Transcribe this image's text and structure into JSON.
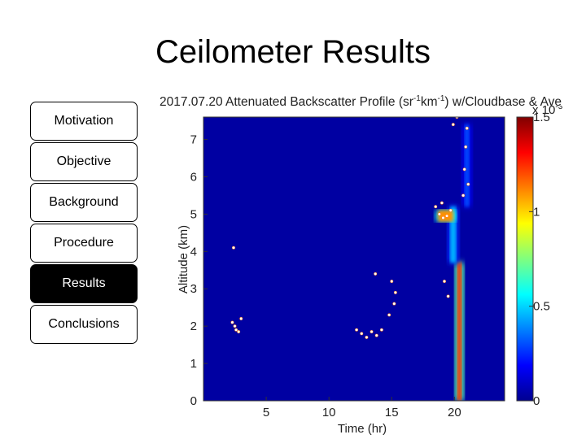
{
  "slide": {
    "title": "Ceilometer Results"
  },
  "nav": {
    "items": [
      {
        "label": "Motivation",
        "active": false
      },
      {
        "label": "Objective",
        "active": false
      },
      {
        "label": "Background",
        "active": false
      },
      {
        "label": "Procedure",
        "active": false
      },
      {
        "label": "Results",
        "active": true
      },
      {
        "label": "Conclusions",
        "active": false
      }
    ]
  },
  "chart_data": {
    "type": "heatmap",
    "title_parts": {
      "a": "2017.07.20 Attenuated Backscatter Profile (sr",
      "sup1": "-1",
      "b": "km",
      "sup2": "-1",
      "c": ") w/Cloudbase & Ave"
    },
    "xlabel": "Time (hr)",
    "ylabel": "Altitude (km)",
    "xlim": [
      0,
      24
    ],
    "ylim": [
      0,
      7.6
    ],
    "xticks": [
      5,
      10,
      15,
      20
    ],
    "yticks": [
      0,
      1,
      2,
      3,
      4,
      5,
      6,
      7
    ],
    "colorbar": {
      "min": 0,
      "max": 1.5,
      "ticks": [
        0,
        0.5,
        1,
        1.5
      ],
      "exponent_label": "x 10",
      "exponent_sup": "-3",
      "colormap": "jet"
    },
    "background_value": 0.05,
    "features": [
      {
        "name": "plume",
        "x_center": 20.4,
        "x_width": 0.35,
        "y_bottom": 0,
        "y_top": 3.7,
        "value": 1.25
      },
      {
        "name": "plume-upper",
        "x_center": 19.9,
        "x_width": 0.5,
        "y_bottom": 3.7,
        "y_top": 5.2,
        "value": 0.45
      },
      {
        "name": "cloud-layer",
        "x_start": 18.7,
        "x_end": 19.9,
        "y_bottom": 4.8,
        "y_top": 5.1,
        "value": 1.1
      },
      {
        "name": "high-cloud",
        "x_start": 20.8,
        "x_end": 21.2,
        "y_bottom": 5.2,
        "y_top": 7.4,
        "value": 0.3
      }
    ],
    "cloudbase_points": [
      [
        2.3,
        2.1
      ],
      [
        2.5,
        2.0
      ],
      [
        2.8,
        1.85
      ],
      [
        3.0,
        2.2
      ],
      [
        2.6,
        1.9
      ],
      [
        2.4,
        4.1
      ],
      [
        12.2,
        1.9
      ],
      [
        12.6,
        1.8
      ],
      [
        13.0,
        1.7
      ],
      [
        13.4,
        1.85
      ],
      [
        13.8,
        1.75
      ],
      [
        14.2,
        1.9
      ],
      [
        14.8,
        2.3
      ],
      [
        15.2,
        2.6
      ],
      [
        15.0,
        3.2
      ],
      [
        15.3,
        2.9
      ],
      [
        13.7,
        3.4
      ],
      [
        18.5,
        5.2
      ],
      [
        18.8,
        5.0
      ],
      [
        19.1,
        4.9
      ],
      [
        19.4,
        4.95
      ],
      [
        19.7,
        5.1
      ],
      [
        19.0,
        5.3
      ],
      [
        19.2,
        3.2
      ],
      [
        19.5,
        2.8
      ],
      [
        20.8,
        6.2
      ],
      [
        20.9,
        6.8
      ],
      [
        21.0,
        7.3
      ],
      [
        21.1,
        5.8
      ],
      [
        20.7,
        5.5
      ],
      [
        19.9,
        7.4
      ],
      [
        20.2,
        7.6
      ]
    ]
  }
}
